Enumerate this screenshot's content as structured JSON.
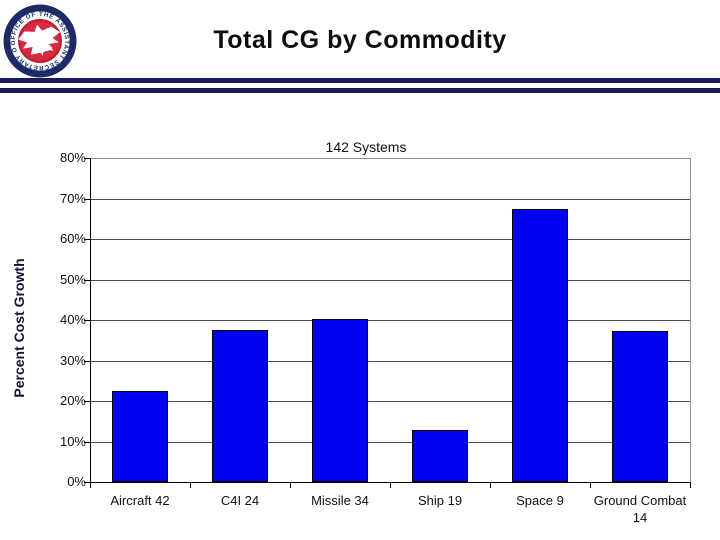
{
  "header": {
    "title": "Total CG by Commodity",
    "seal": {
      "ring_text": "OFFICE OF THE ASSISTANT SECRETARY OF THE ARMY",
      "ring_color": "#1e2a68",
      "band_color": "#ffffff",
      "center_color": "#c41a32"
    }
  },
  "divider": {
    "color": "#1a1a5e"
  },
  "chart_data": {
    "type": "bar",
    "annotation": "142 Systems",
    "ylabel": "Percent Cost Growth",
    "xlabel": "",
    "categories": [
      "Aircraft 42",
      "C4I 24",
      "Missile 34",
      "Ship 19",
      "Space 9",
      "Ground Combat 14"
    ],
    "values": [
      22.5,
      37.5,
      40.2,
      12.9,
      67.5,
      37.2
    ],
    "ylim": [
      0,
      80
    ],
    "ytick_labels": [
      "0%",
      "10%",
      "20%",
      "30%",
      "40%",
      "50%",
      "60%",
      "70%",
      "80%"
    ],
    "ytick_step": 10,
    "grid": true,
    "legend": "none",
    "bar_color": "#0202f2",
    "bar_border_color": "#000000",
    "axis_color": "#000000",
    "gridline_color": "#4d4d4d",
    "plot_border_color": "#8f8f8f"
  }
}
